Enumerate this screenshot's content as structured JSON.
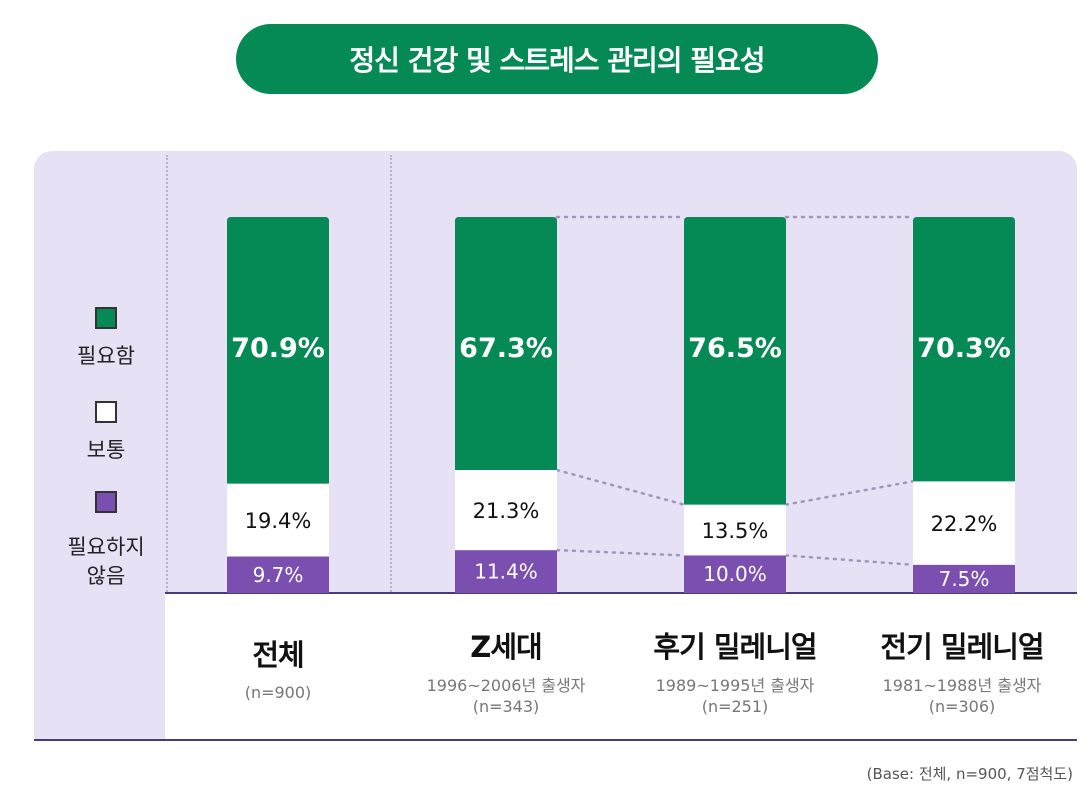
{
  "title": "정신 건강 및 스트레스 관리의 필요성",
  "legend": {
    "items": [
      {
        "label": "필요함",
        "color": "#058a56"
      },
      {
        "label": "보통",
        "color": "#ffffff"
      },
      {
        "label_line1": "필요하지",
        "label_line2": "않음",
        "color": "#7b4fb0"
      }
    ]
  },
  "categories": [
    {
      "name": "전체",
      "sub": "",
      "n": "(n=900)"
    },
    {
      "name": "Z세대",
      "sub": "1996~2006년 출생자",
      "n": "(n=343)"
    },
    {
      "name": "후기 밀레니얼",
      "sub": "1989~1995년 출생자",
      "n": "(n=251)"
    },
    {
      "name": "전기 밀레니얼",
      "sub": "1981~1988년 출생자",
      "n": "(n=306)"
    }
  ],
  "footnote": "(Base: 전체, n=900, 7점척도)",
  "chart_data": {
    "type": "bar",
    "stacked": true,
    "categories": [
      "전체",
      "Z세대",
      "후기 밀레니얼",
      "전기 밀레니얼"
    ],
    "series": [
      {
        "name": "필요하지 않음",
        "color": "#7b4fb0",
        "values": [
          9.7,
          11.4,
          10.0,
          7.5
        ],
        "labels": [
          "9.7%",
          "11.4%",
          "10.0%",
          "7.5%"
        ]
      },
      {
        "name": "보통",
        "color": "#ffffff",
        "values": [
          19.4,
          21.3,
          13.5,
          22.2
        ],
        "labels": [
          "19.4%",
          "21.3%",
          "13.5%",
          "22.2%"
        ]
      },
      {
        "name": "필요함",
        "color": "#058a56",
        "values": [
          70.9,
          67.3,
          76.5,
          70.3
        ],
        "labels": [
          "70.9%",
          "67.3%",
          "76.5%",
          "70.3%"
        ]
      }
    ],
    "ylim": [
      0,
      100
    ]
  }
}
